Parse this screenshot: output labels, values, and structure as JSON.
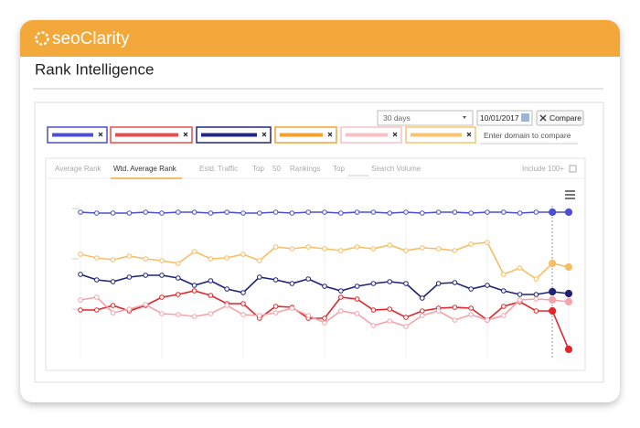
{
  "header": {
    "logo": "seoClarity"
  },
  "page": {
    "title": "Rank Intelligence"
  },
  "controls": {
    "period": "30 days",
    "date": "10/01/2017",
    "compare": "Compare",
    "placeholder": "Enter domain to compare",
    "chips": [
      "#4b4fd0",
      "#e05050",
      "#23277f",
      "#f5a031",
      "#f9c0c5",
      "#f8c471"
    ]
  },
  "tabs": {
    "items": [
      "Average Rank",
      "Wtd. Average Rank",
      "Estd. Traffic"
    ],
    "active": 1,
    "top_label": "Top",
    "top_value": "50",
    "rankings": "Rankings",
    "top_label_2": "Top",
    "search_volume": "Search Volume",
    "include": "Include 100+"
  },
  "chart_data": {
    "type": "line",
    "ylim": [
      0,
      100
    ],
    "series": [
      {
        "color": "#4b4fd0",
        "values": [
          84,
          83.5,
          83.5,
          83.5,
          84,
          83.5,
          84,
          84,
          83.5,
          84,
          83.5,
          83.5,
          84,
          83.5,
          84,
          84,
          83.5,
          84,
          84,
          83.5,
          84,
          83.5,
          84,
          84,
          83.5,
          84,
          84,
          83.5,
          84,
          84,
          84
        ]
      },
      {
        "color": "#f7bd63",
        "values": [
          61,
          59,
          58,
          60,
          58.5,
          57.5,
          56,
          62.5,
          58.5,
          59,
          61,
          57.5,
          65,
          64,
          65,
          64,
          63,
          65,
          64,
          66,
          63,
          64.5,
          64,
          63,
          66.5,
          67.5,
          50,
          53.5,
          47.5,
          56,
          54
        ]
      },
      {
        "color": "#1f2378",
        "values": [
          50,
          47,
          46,
          48.5,
          49.5,
          49.5,
          48,
          44,
          46.5,
          42,
          40,
          48.5,
          47,
          45,
          47.5,
          43.5,
          41,
          43.5,
          45,
          46,
          45,
          37,
          45,
          45.5,
          42,
          44,
          41,
          39,
          39,
          40.5,
          39.5
        ]
      },
      {
        "color": "#e0262b",
        "values": [
          30.5,
          30.5,
          33,
          30,
          33,
          37.5,
          39,
          41,
          38.5,
          34,
          34,
          26,
          32.5,
          32,
          26,
          26,
          37.5,
          36.5,
          30.5,
          31,
          26.5,
          30,
          31.5,
          32,
          31.5,
          25,
          32.5,
          35,
          30,
          30,
          9
        ]
      },
      {
        "color": "#f5a3aa",
        "values": [
          36,
          37.5,
          29,
          31,
          33.5,
          28.5,
          28,
          27,
          28.5,
          33,
          28,
          27.5,
          29,
          31.5,
          27.5,
          23.5,
          30,
          28.5,
          22,
          24.5,
          21.5,
          27.5,
          30,
          25,
          28,
          25,
          27.5,
          36,
          36.5,
          36,
          35
        ]
      }
    ]
  }
}
